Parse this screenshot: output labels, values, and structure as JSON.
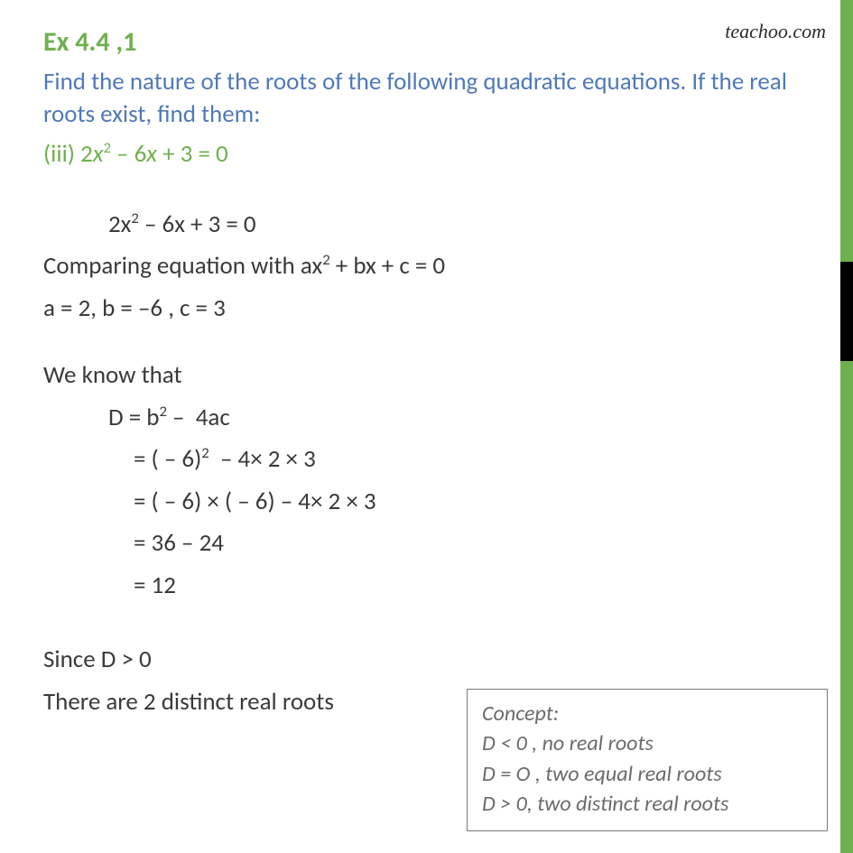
{
  "watermark": "teachoo.com",
  "header": {
    "ex_label": "Ex 4.4  ,1",
    "question": "Find the nature of the roots of the following quadratic equations. If the real roots exist, find them:",
    "subpart": "(iii) 2x² – 6x + 3 = 0"
  },
  "lines": {
    "eq1": "2x² – 6x + 3 = 0",
    "compare": "Comparing equation with ax² + bx + c = 0",
    "coeffs": "a = 2, b = –6 , c = 3",
    "weknow": "We know that",
    "d1": "D = b² –  4ac",
    "d2": "= ( – 6)²  – 4× 2 × 3",
    "d3": "= (  – 6) × ( – 6)  – 4× 2 × 3",
    "d4": "= 36 – 24",
    "d5": "= 12",
    "since": "Since D > 0",
    "result": "There are 2 distinct real roots"
  },
  "concept": {
    "title": "Concept:",
    "l1": "D < 0 , no real roots",
    "l2": "D = O , two equal real roots",
    "l3": "D > 0, two distinct real roots"
  },
  "colors": {
    "green": "#6fb04e",
    "blue": "#4f79b8",
    "text": "#3a3a3a",
    "grey": "#6b6b6b",
    "border": "#7a7a7a"
  }
}
